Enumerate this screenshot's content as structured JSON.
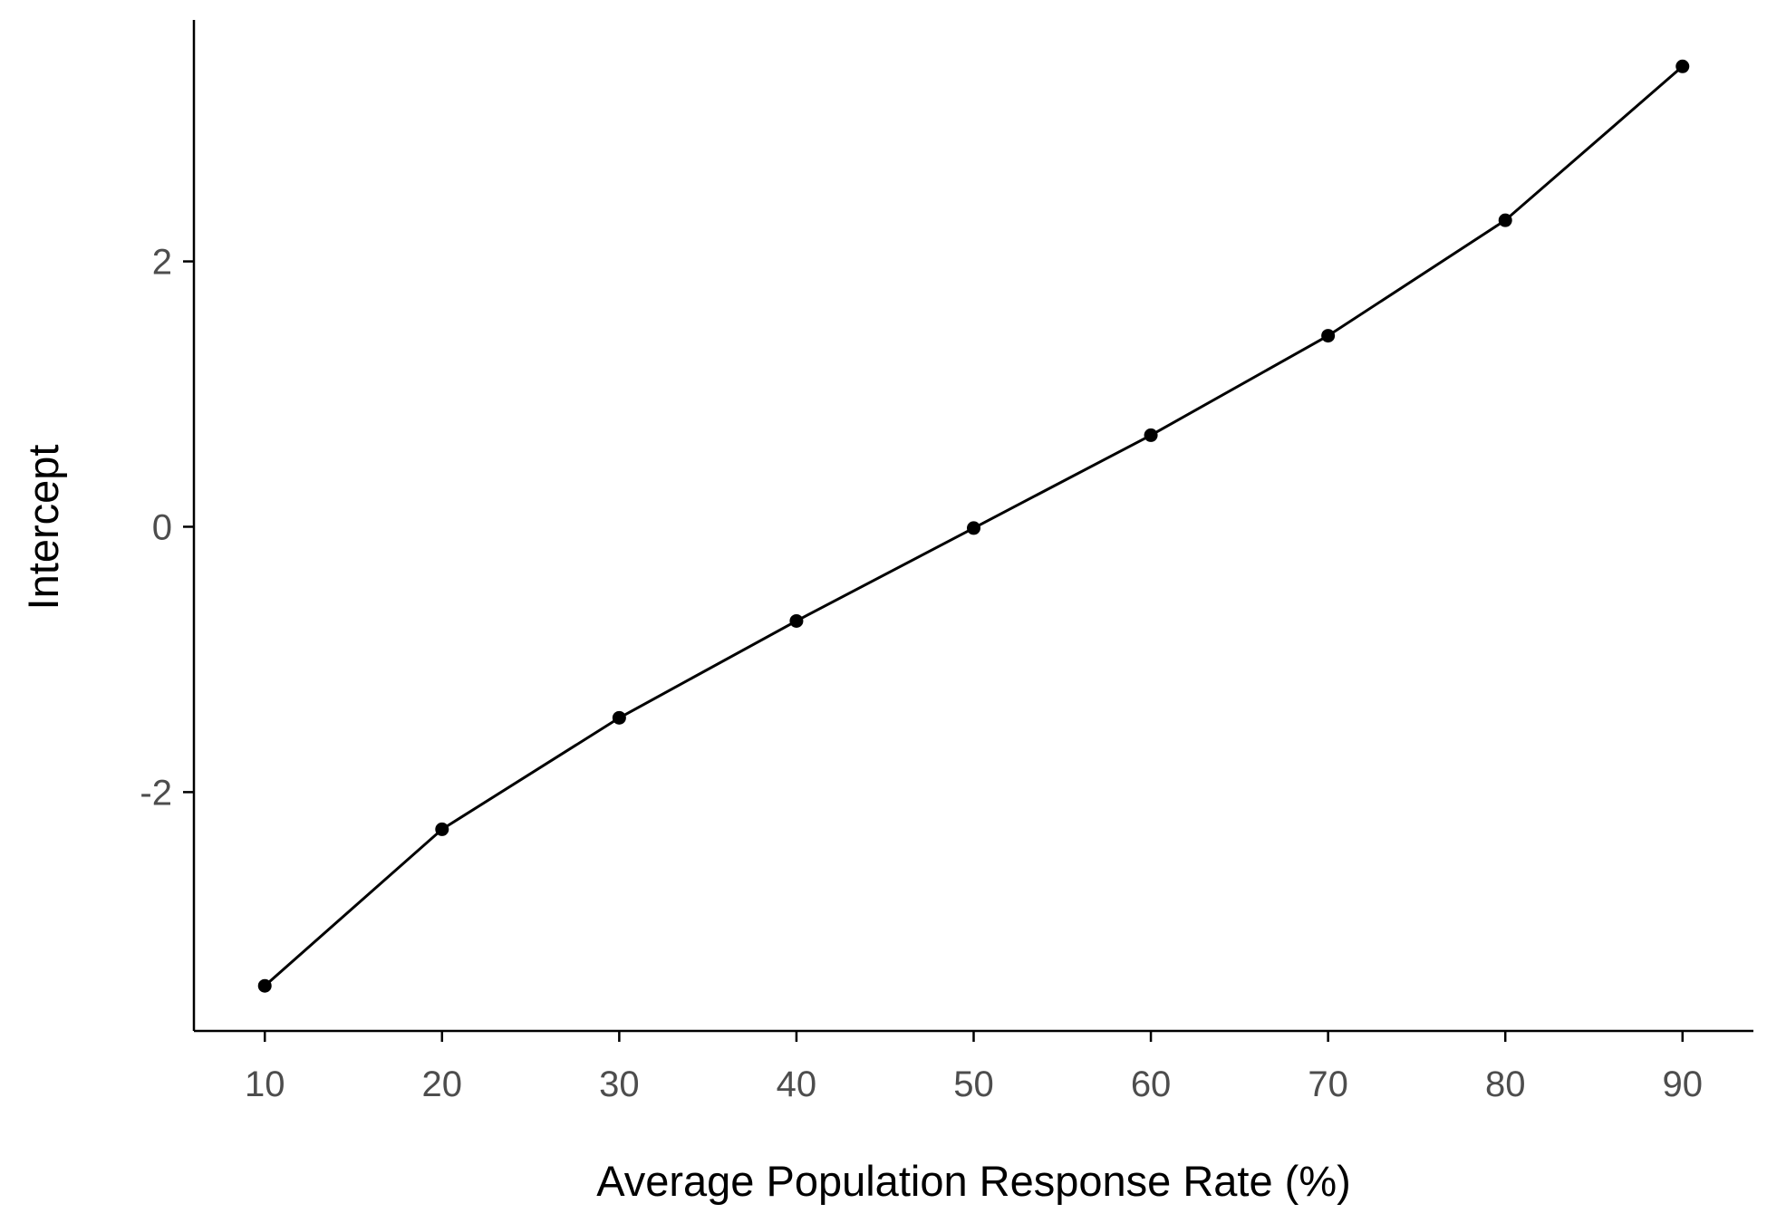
{
  "chart_data": {
    "type": "line",
    "title": "",
    "xlabel": "Average Population Response Rate (%)",
    "ylabel": "Intercept",
    "x": [
      10,
      20,
      30,
      40,
      50,
      60,
      70,
      80,
      90
    ],
    "series": [
      {
        "values": [
          -3.46,
          -2.28,
          -1.44,
          -0.71,
          -0.01,
          0.69,
          1.44,
          2.31,
          3.47
        ]
      }
    ],
    "x_ticks": [
      10,
      20,
      30,
      40,
      50,
      60,
      70,
      80,
      90
    ],
    "x_tick_labels": [
      "10",
      "20",
      "30",
      "40",
      "50",
      "60",
      "70",
      "80",
      "90"
    ],
    "y_ticks": [
      -2,
      0,
      2
    ],
    "y_tick_labels": [
      "-2",
      "0",
      "2"
    ],
    "xlim": [
      6,
      94
    ],
    "ylim": [
      -3.8,
      3.82
    ],
    "grid": false,
    "legend": "none",
    "colors": {
      "line": "#000000",
      "points": "#000000",
      "tick_labels": "#4d4d4d",
      "axis_titles": "#000000"
    }
  }
}
